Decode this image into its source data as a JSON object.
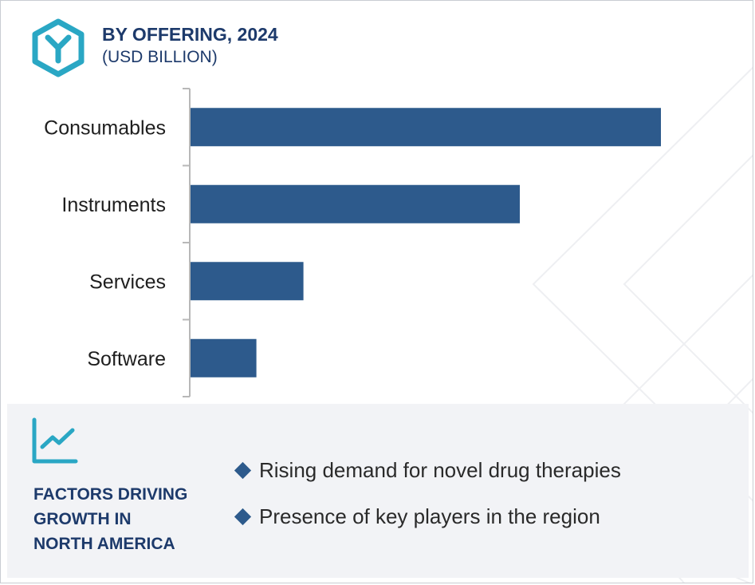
{
  "header": {
    "title": "BY OFFERING, 2024",
    "subtitle": "(USD BILLION)",
    "logo_icon": "hexagon-y-logo-icon"
  },
  "colors": {
    "bar": "#2d5a8c",
    "title": "#1d3a6b",
    "logo": "#2aa7c4",
    "panel": "#f2f3f6"
  },
  "chart_data": {
    "type": "bar",
    "orientation": "horizontal",
    "categories": [
      "Consumables",
      "Instruments",
      "Services",
      "Software"
    ],
    "values": [
      100,
      70,
      24,
      14
    ],
    "title": "BY OFFERING, 2024",
    "xlabel": "",
    "ylabel": "",
    "unit": "(USD BILLION)",
    "xlim": [
      0,
      100
    ],
    "grid": false,
    "legend": "none"
  },
  "factors": {
    "icon": "line-chart-trend-icon",
    "title": "FACTORS DRIVING\nGROWTH IN\nNORTH AMERICA",
    "items": [
      "Rising demand for novel drug therapies",
      "Presence of key players in the region"
    ]
  }
}
